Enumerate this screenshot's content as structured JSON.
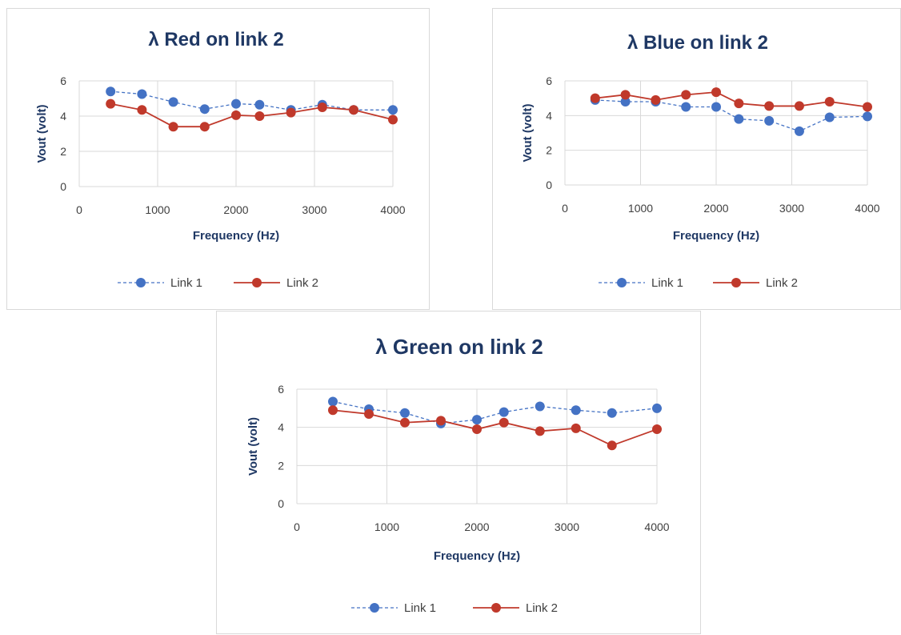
{
  "colors": {
    "link1": "#4472c4",
    "link2": "#c0392b",
    "grid": "#d9d9d9",
    "title": "#1f3864"
  },
  "chart_data": [
    {
      "type": "line",
      "title": "λ Red on link 2",
      "xlabel": "Frequency (Hz)",
      "ylabel": "Vout (volt)",
      "xlim": [
        0,
        4000
      ],
      "ylim": [
        0,
        6
      ],
      "xticks": [
        0,
        1000,
        2000,
        3000,
        4000
      ],
      "yticks": [
        0,
        2,
        4,
        6
      ],
      "grid": true,
      "legend": "bottom",
      "series": [
        {
          "name": "Link 1",
          "x": [
            400,
            800,
            1200,
            1600,
            2000,
            2300,
            2700,
            3100,
            3500,
            4000
          ],
          "y": [
            5.4,
            5.25,
            4.8,
            4.4,
            4.7,
            4.65,
            4.35,
            4.65,
            4.35,
            4.35
          ]
        },
        {
          "name": "Link 2",
          "x": [
            400,
            800,
            1200,
            1600,
            2000,
            2300,
            2700,
            3100,
            3500,
            4000
          ],
          "y": [
            4.7,
            4.35,
            3.4,
            3.4,
            4.05,
            4.0,
            4.2,
            4.5,
            4.35,
            3.8
          ]
        }
      ]
    },
    {
      "type": "line",
      "title": "λ Blue on link 2",
      "xlabel": "Frequency (Hz)",
      "ylabel": "Vout (volt)",
      "xlim": [
        0,
        4000
      ],
      "ylim": [
        0,
        6
      ],
      "xticks": [
        0,
        1000,
        2000,
        3000,
        4000
      ],
      "yticks": [
        0,
        2,
        4,
        6
      ],
      "grid": true,
      "legend": "bottom",
      "series": [
        {
          "name": "Link 1",
          "x": [
            400,
            800,
            1200,
            1600,
            2000,
            2300,
            2700,
            3100,
            3500,
            4000
          ],
          "y": [
            4.9,
            4.8,
            4.8,
            4.5,
            4.5,
            3.8,
            3.7,
            3.1,
            3.9,
            3.95
          ]
        },
        {
          "name": "Link 2",
          "x": [
            400,
            800,
            1200,
            1600,
            2000,
            2300,
            2700,
            3100,
            3500,
            4000
          ],
          "y": [
            5.0,
            5.2,
            4.9,
            5.2,
            5.35,
            4.7,
            4.55,
            4.55,
            4.8,
            4.5
          ]
        }
      ]
    },
    {
      "type": "line",
      "title": "λ Green on link 2",
      "xlabel": "Frequency (Hz)",
      "ylabel": "Vout (volt)",
      "xlim": [
        0,
        4000
      ],
      "ylim": [
        0,
        6
      ],
      "xticks": [
        0,
        1000,
        2000,
        3000,
        4000
      ],
      "yticks": [
        0,
        2,
        4,
        6
      ],
      "grid": true,
      "legend": "bottom",
      "series": [
        {
          "name": "Link 1",
          "x": [
            400,
            800,
            1200,
            1600,
            2000,
            2300,
            2700,
            3100,
            3500,
            4000
          ],
          "y": [
            5.35,
            4.95,
            4.75,
            4.2,
            4.4,
            4.8,
            5.1,
            4.9,
            4.75,
            5.0
          ]
        },
        {
          "name": "Link 2",
          "x": [
            400,
            800,
            1200,
            1600,
            2000,
            2300,
            2700,
            3100,
            3500,
            4000
          ],
          "y": [
            4.9,
            4.7,
            4.25,
            4.35,
            3.9,
            4.25,
            3.8,
            3.95,
            3.05,
            3.9
          ]
        }
      ]
    }
  ]
}
